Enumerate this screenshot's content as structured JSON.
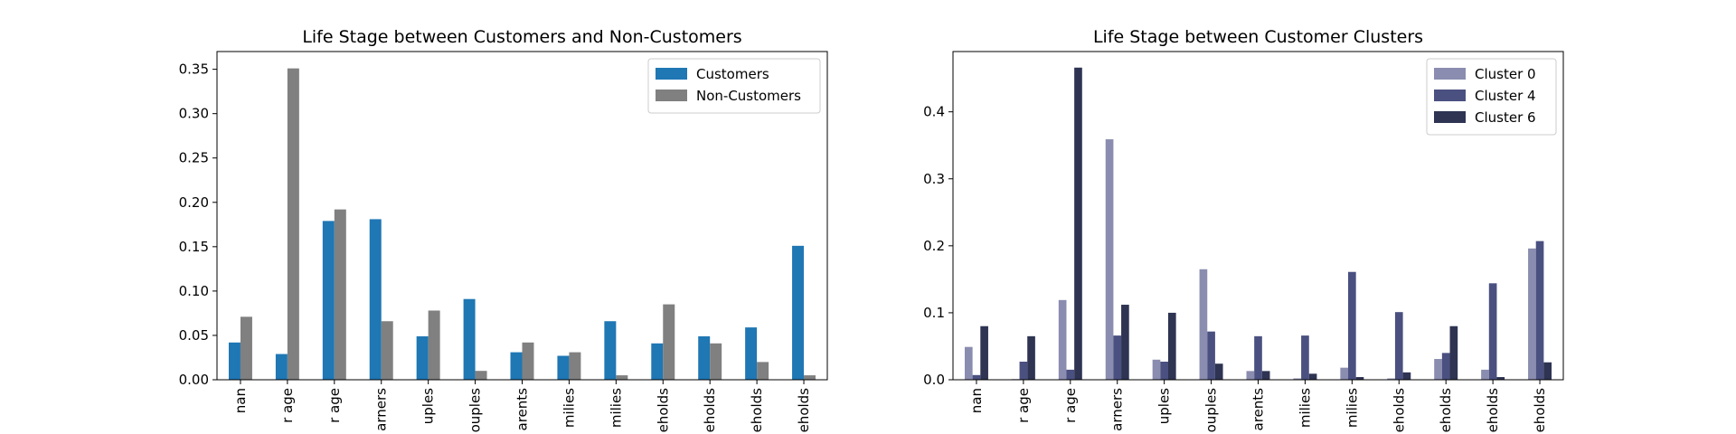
{
  "chart_data": [
    {
      "type": "bar",
      "title": "Life Stage between Customers and Non-Customers",
      "xlabel": "",
      "ylabel": "",
      "ylim": [
        0,
        0.37
      ],
      "yticks": [
        "0.00",
        "0.05",
        "0.10",
        "0.15",
        "0.20",
        "0.25",
        "0.30",
        "0.35"
      ],
      "ytick_values": [
        0,
        0.05,
        0.1,
        0.15,
        0.2,
        0.25,
        0.3,
        0.35
      ],
      "categories": [
        "nan",
        "r age",
        "r age",
        "arners",
        "uples",
        "ouples",
        "arents",
        "milies",
        "milies",
        "eholds",
        "eholds",
        "eholds",
        "eholds"
      ],
      "legend_position": "upper right",
      "grid": false,
      "series": [
        {
          "name": "Customers",
          "color": "#1f77b4",
          "values": [
            0.042,
            0.029,
            0.179,
            0.181,
            0.049,
            0.091,
            0.031,
            0.027,
            0.066,
            0.041,
            0.049,
            0.059,
            0.151
          ]
        },
        {
          "name": "Non-Customers",
          "color": "#808080",
          "values": [
            0.071,
            0.351,
            0.192,
            0.066,
            0.078,
            0.01,
            0.042,
            0.031,
            0.005,
            0.085,
            0.041,
            0.02,
            0.005
          ]
        }
      ]
    },
    {
      "type": "bar",
      "title": "Life Stage between Customer Clusters",
      "xlabel": "",
      "ylabel": "",
      "ylim": [
        0,
        0.49
      ],
      "yticks": [
        "0.0",
        "0.1",
        "0.2",
        "0.3",
        "0.4"
      ],
      "ytick_values": [
        0,
        0.1,
        0.2,
        0.3,
        0.4
      ],
      "categories": [
        "nan",
        "r age",
        "r age",
        "arners",
        "uples",
        "ouples",
        "arents",
        "milies",
        "milies",
        "eholds",
        "eholds",
        "eholds",
        "eholds"
      ],
      "legend_position": "upper right",
      "grid": false,
      "series": [
        {
          "name": "Cluster 0",
          "color": "#8a8daf",
          "values": [
            0.049,
            0.001,
            0.119,
            0.359,
            0.03,
            0.165,
            0.013,
            0.002,
            0.018,
            0.002,
            0.031,
            0.015,
            0.196
          ]
        },
        {
          "name": "Cluster 4",
          "color": "#4a5080",
          "values": [
            0.007,
            0.027,
            0.015,
            0.066,
            0.027,
            0.072,
            0.065,
            0.066,
            0.161,
            0.101,
            0.04,
            0.144,
            0.207
          ]
        },
        {
          "name": "Cluster 6",
          "color": "#2e3452",
          "values": [
            0.08,
            0.065,
            0.466,
            0.112,
            0.1,
            0.024,
            0.013,
            0.009,
            0.004,
            0.011,
            0.08,
            0.004,
            0.026
          ]
        }
      ]
    }
  ]
}
